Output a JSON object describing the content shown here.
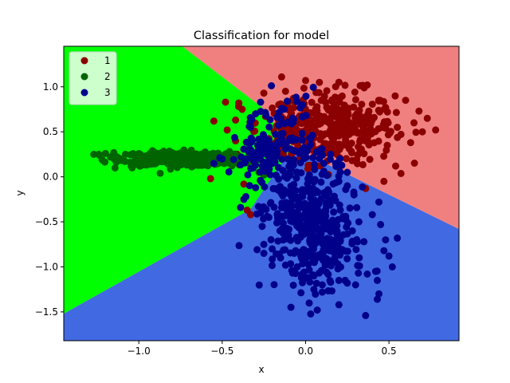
{
  "chart_data": {
    "type": "scatter",
    "title": "Classification for model",
    "xlabel": "x",
    "ylabel": "y",
    "xlim": [
      -1.45,
      0.92
    ],
    "ylim": [
      -1.82,
      1.45
    ],
    "xticks": [
      -1.0,
      -0.5,
      0.0,
      0.5
    ],
    "xtick_labels": [
      "−1.0",
      "−0.5",
      "0.0",
      "0.5"
    ],
    "yticks": [
      -1.5,
      -1.0,
      -0.5,
      0.0,
      0.5,
      1.0
    ],
    "ytick_labels": [
      "−1.5",
      "−1.0",
      "−0.5",
      "0.0",
      "0.5",
      "1.0"
    ],
    "grid": false,
    "legend_position": "top-left",
    "decision_regions": [
      {
        "class": "1",
        "color": "#f08080",
        "polygon": [
          [
            -0.74,
            1.45
          ],
          [
            -0.26,
            0.77
          ],
          [
            -0.08,
            0.33
          ],
          [
            0.92,
            -0.58
          ],
          [
            0.92,
            1.45
          ]
        ]
      },
      {
        "class": "2",
        "color": "#00ff00",
        "polygon": [
          [
            -1.45,
            1.45
          ],
          [
            -0.74,
            1.45
          ],
          [
            -0.26,
            0.77
          ],
          [
            -0.08,
            0.33
          ],
          [
            -0.33,
            -0.36
          ],
          [
            -1.45,
            -1.52
          ]
        ]
      },
      {
        "class": "3",
        "color": "#4169e1",
        "polygon": [
          [
            -1.45,
            -1.52
          ],
          [
            -0.33,
            -0.36
          ],
          [
            -0.08,
            0.33
          ],
          [
            0.92,
            -0.58
          ],
          [
            0.92,
            -1.82
          ],
          [
            -1.45,
            -1.82
          ]
        ]
      }
    ],
    "series": [
      {
        "name": "1",
        "color": "#8b0000",
        "clusters": [
          {
            "x": 0.19,
            "y": 0.55,
            "sx": 0.17,
            "sy": 0.2,
            "n": 320
          },
          {
            "x": -0.1,
            "y": 0.52,
            "sx": 0.1,
            "sy": 0.18,
            "n": 60
          }
        ],
        "points": [
          [
            -0.38,
            0.75
          ],
          [
            -0.48,
            0.83
          ],
          [
            -0.4,
            0.82
          ],
          [
            -0.42,
            0.63
          ],
          [
            -0.47,
            0.52
          ],
          [
            -0.55,
            0.62
          ],
          [
            -0.25,
            0.93
          ],
          [
            -0.15,
            0.81
          ],
          [
            -0.42,
            0.4
          ],
          [
            -0.4,
            0.2
          ],
          [
            -0.37,
            -0.08
          ],
          [
            -0.45,
            0.22
          ],
          [
            -0.33,
            -0.42
          ],
          [
            -0.35,
            -0.37
          ],
          [
            -0.41,
            0.25
          ],
          [
            -0.12,
            0.95
          ],
          [
            0.0,
            1.07
          ],
          [
            0.2,
            1.05
          ],
          [
            0.37,
            1.02
          ],
          [
            0.7,
            0.5
          ],
          [
            0.63,
            0.38
          ],
          [
            0.65,
            0.6
          ],
          [
            0.73,
            0.65
          ],
          [
            0.78,
            0.52
          ],
          [
            0.68,
            0.73
          ],
          [
            0.6,
            0.85
          ],
          [
            0.47,
            -0.05
          ],
          [
            0.36,
            -0.13
          ],
          [
            -0.57,
            -0.02
          ],
          [
            0.54,
            0.12
          ],
          [
            0.49,
            0.35
          ],
          [
            0.55,
            0.55
          ],
          [
            0.48,
            0.77
          ]
        ]
      },
      {
        "name": "2",
        "color": "#006400",
        "clusters": [
          {
            "x": -0.78,
            "y": 0.2,
            "sx": 0.16,
            "sy": 0.04,
            "n": 290
          },
          {
            "x": -0.47,
            "y": 0.19,
            "sx": 0.08,
            "sy": 0.035,
            "n": 60
          }
        ],
        "points": [
          [
            -1.27,
            0.25
          ],
          [
            -1.24,
            0.25
          ],
          [
            -1.2,
            0.26
          ],
          [
            -1.22,
            0.19
          ],
          [
            -1.17,
            0.22
          ],
          [
            -1.15,
            0.27
          ],
          [
            -1.13,
            0.22
          ],
          [
            -1.1,
            0.18
          ],
          [
            -1.08,
            0.25
          ],
          [
            -1.04,
            0.1
          ],
          [
            -0.28,
            0.05
          ],
          [
            -0.25,
            0.02
          ],
          [
            -0.28,
            0.25
          ],
          [
            -0.3,
            0.17
          ]
        ]
      },
      {
        "name": "3",
        "color": "#00008b",
        "clusters": [
          {
            "x": 0.0,
            "y": -0.45,
            "sx": 0.13,
            "sy": 0.28,
            "n": 260
          },
          {
            "x": 0.09,
            "y": -0.8,
            "sx": 0.13,
            "sy": 0.23,
            "n": 130
          },
          {
            "x": -0.18,
            "y": 0.25,
            "sx": 0.14,
            "sy": 0.16,
            "n": 140
          },
          {
            "x": -0.1,
            "y": 0.65,
            "sx": 0.09,
            "sy": 0.15,
            "n": 30
          }
        ],
        "points": [
          [
            -0.27,
            0.83
          ],
          [
            -0.3,
            0.7
          ],
          [
            -0.33,
            0.55
          ],
          [
            -0.32,
            0.4
          ],
          [
            -0.3,
            -0.12
          ],
          [
            -0.37,
            -0.25
          ],
          [
            -0.27,
            -0.4
          ],
          [
            -0.26,
            -0.55
          ],
          [
            -0.22,
            -0.45
          ],
          [
            -0.17,
            -0.42
          ],
          [
            -0.25,
            -0.75
          ],
          [
            -0.2,
            -0.8
          ],
          [
            -0.25,
            -0.85
          ],
          [
            -0.15,
            -0.9
          ],
          [
            -0.12,
            -0.98
          ],
          [
            -0.05,
            -1.0
          ],
          [
            -0.02,
            -1.08
          ],
          [
            0.0,
            -1.12
          ],
          [
            0.05,
            -1.1
          ],
          [
            0.1,
            -1.2
          ],
          [
            0.1,
            -1.28
          ],
          [
            0.05,
            -1.25
          ],
          [
            0.15,
            -1.17
          ],
          [
            0.2,
            -1.15
          ],
          [
            0.25,
            -1.18
          ],
          [
            0.3,
            -1.2
          ],
          [
            0.37,
            -1.08
          ],
          [
            0.42,
            -1.05
          ],
          [
            0.43,
            -1.15
          ],
          [
            0.44,
            -1.3
          ],
          [
            0.43,
            -1.36
          ],
          [
            0.2,
            -1.42
          ],
          [
            0.36,
            -1.54
          ],
          [
            0.07,
            -1.48
          ],
          [
            0.44,
            -0.28
          ],
          [
            0.47,
            -0.82
          ],
          [
            0.5,
            -0.88
          ],
          [
            0.52,
            -1.0
          ],
          [
            0.55,
            -0.68
          ],
          [
            0.48,
            -0.7
          ],
          [
            0.45,
            -0.53
          ],
          [
            0.4,
            -0.42
          ],
          [
            -0.55,
            0.15
          ],
          [
            -0.5,
            0.2
          ],
          [
            -0.3,
            0.13
          ],
          [
            -0.35,
            0.3
          ],
          [
            0.2,
            -0.05
          ],
          [
            0.25,
            0.05
          ],
          [
            0.15,
            0.25
          ],
          [
            0.18,
            0.15
          ],
          [
            0.25,
            -0.1
          ],
          [
            0.29,
            -0.2
          ],
          [
            -0.05,
            -0.32
          ],
          [
            0.32,
            -0.5
          ],
          [
            0.28,
            -0.6
          ],
          [
            0.35,
            -0.72
          ]
        ]
      }
    ]
  }
}
